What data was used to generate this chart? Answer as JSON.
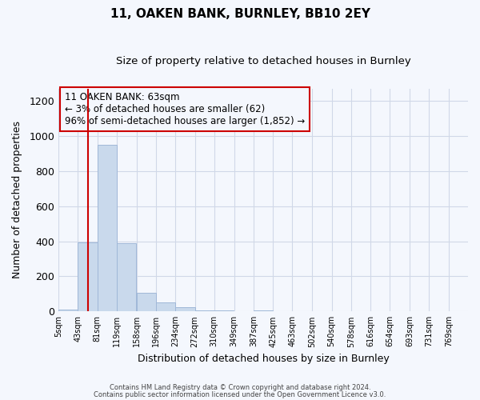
{
  "title": "11, OAKEN BANK, BURNLEY, BB10 2EY",
  "subtitle": "Size of property relative to detached houses in Burnley",
  "xlabel": "Distribution of detached houses by size in Burnley",
  "ylabel": "Number of detached properties",
  "bar_left_edges": [
    5,
    43,
    81,
    119,
    158,
    196,
    234,
    272,
    310,
    349,
    387,
    425,
    463,
    502,
    540,
    578,
    616,
    654,
    693,
    731
  ],
  "bar_heights": [
    10,
    395,
    950,
    390,
    105,
    52,
    22,
    8,
    5,
    0,
    5,
    0,
    0,
    0,
    0,
    0,
    0,
    0,
    0,
    0
  ],
  "bin_width": 38,
  "tick_labels": [
    "5sqm",
    "43sqm",
    "81sqm",
    "119sqm",
    "158sqm",
    "196sqm",
    "234sqm",
    "272sqm",
    "310sqm",
    "349sqm",
    "387sqm",
    "425sqm",
    "463sqm",
    "502sqm",
    "540sqm",
    "578sqm",
    "616sqm",
    "654sqm",
    "693sqm",
    "731sqm",
    "769sqm"
  ],
  "bar_color": "#c9d9ec",
  "bar_edge_color": "#a0b8d8",
  "vline_x": 63,
  "vline_color": "#cc0000",
  "annotation_title": "11 OAKEN BANK: 63sqm",
  "annotation_line1": "← 3% of detached houses are smaller (62)",
  "annotation_line2": "96% of semi-detached houses are larger (1,852) →",
  "box_edge_color": "#cc0000",
  "ylim": [
    0,
    1270
  ],
  "yticks": [
    0,
    200,
    400,
    600,
    800,
    1000,
    1200
  ],
  "footer1": "Contains HM Land Registry data © Crown copyright and database right 2024.",
  "footer2": "Contains public sector information licensed under the Open Government Licence v3.0.",
  "bg_color": "#f4f7fd",
  "grid_color": "#d0d8e8",
  "xlim_left": 5,
  "xlim_right": 807
}
